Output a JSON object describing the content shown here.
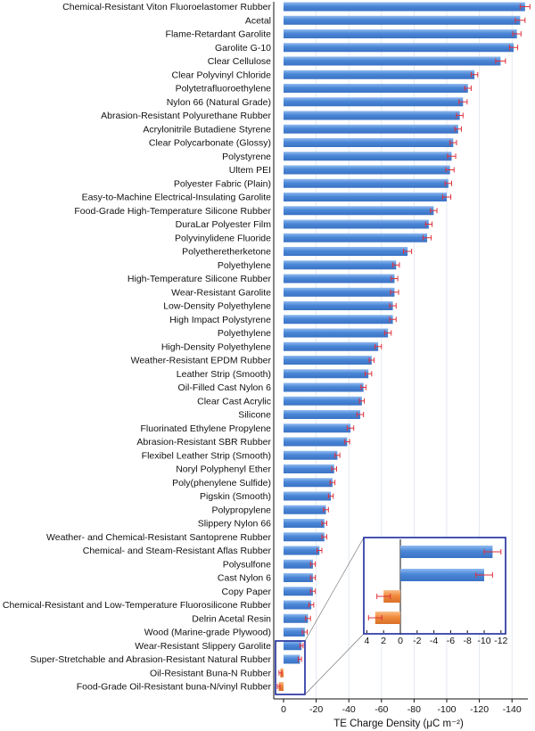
{
  "chart_data": {
    "type": "bar",
    "orientation": "horizontal",
    "x_reversed": true,
    "xlabel": "TE Charge Density (μC m⁻²)",
    "xlim": [
      0,
      -150
    ],
    "x_ticks": [
      0,
      -20,
      -40,
      -60,
      -80,
      -100,
      -120,
      -140
    ],
    "x_tick_labels": [
      "0",
      "-20",
      "-40",
      "-60",
      "-80",
      "-100",
      "-120",
      "-140"
    ],
    "grid": true,
    "error_bars": true,
    "colors": {
      "negative_bar": "#4a86d6",
      "positive_bar": "#f08a3c",
      "error_bar": "#e0303c",
      "inset_frame": "#1c2a9c"
    },
    "categories": [
      "Chemical-Resistant Viton Fluoroelastomer Rubber",
      "Acetal",
      "Flame-Retardant Garolite",
      "Garolite G-10",
      "Clear Cellulose",
      "Clear Polyvinyl Chloride",
      "Polytetrafluoroethylene",
      "Nylon 66 (Natural Grade)",
      "Abrasion-Resistant Polyurethane Rubber",
      "Acrylonitrile Butadiene Styrene",
      "Clear Polycarbonate (Glossy)",
      "Polystyrene",
      "Ultem PEI",
      "Polyester Fabric (Plain)",
      "Easy-to-Machine Electrical-Insulating Garolite",
      "Food-Grade High-Temperature Silicone Rubber",
      "DuraLar Polyester Film",
      "Polyvinylidene Fluoride",
      "Polyetheretherketone",
      "Polyethylene",
      "High-Temperature Silicone Rubber",
      "Wear-Resistant Garolite",
      "Low-Density Polyethylene",
      "High Impact Polystyrene",
      "Polyethylene",
      "High-Density Polyethylene",
      "Weather-Resistant EPDM Rubber",
      "Leather Strip (Smooth)",
      "Oil-Filled Cast Nylon 6",
      "Clear Cast Acrylic",
      "Silicone",
      "Fluorinated Ethylene Propylene",
      "Abrasion-Resistant SBR Rubber",
      "Flexibel Leather Strip (Smooth)",
      "Noryl Polyphenyl Ether",
      "Poly(phenylene Sulfide)",
      "Pigskin (Smooth)",
      "Polypropylene",
      "Slippery Nylon 66",
      "Weather- and Chemical-Resistant Santoprene Rubber",
      "Chemical- and Steam-Resistant Aflas Rubber",
      "Polysulfone",
      "Cast Nylon 6",
      "Copy Paper",
      "Chemical-Resistant and Low-Temperature Fluorosilicone Rubber",
      "Delrin Acetal Resin",
      "Wood (Marine-grade Plywood)",
      "Wear-Resistant Slippery Garolite",
      "Super-Stretchable and Abrasion-Resistant Natural Rubber",
      "Oil-Resistant Buna-N Rubber",
      "Food-Grade Oil-Resistant buna-N/vinyl Rubber"
    ],
    "values": [
      -148,
      -145,
      -143,
      -141,
      -133,
      -117,
      -113,
      -110,
      -108,
      -107,
      -104,
      -103,
      -102,
      -101,
      -100,
      -92,
      -89,
      -88,
      -76,
      -69,
      -68,
      -68,
      -67,
      -67,
      -64,
      -58,
      -54,
      -52,
      -49,
      -48,
      -47,
      -41,
      -39,
      -33,
      -31,
      -30,
      -29,
      -26,
      -25,
      -25,
      -22,
      -18,
      -18,
      -18,
      -17,
      -15,
      -13,
      -11,
      -10,
      2,
      3
    ],
    "errors": [
      3,
      3,
      2.5,
      2.5,
      3,
      2,
      2,
      2.5,
      2,
      2,
      2,
      2.5,
      2.5,
      2,
      2.5,
      2,
      2,
      2.5,
      2.5,
      2,
      2,
      2.5,
      2,
      2,
      2,
      2,
      1.5,
      2,
      1.5,
      1.5,
      2,
      2,
      1.5,
      1.5,
      1.5,
      1.5,
      1.5,
      1.5,
      1.5,
      1.5,
      1.5,
      1.5,
      1.5,
      1.5,
      1.5,
      1.5,
      1.5,
      1,
      1,
      0.8,
      0.8
    ],
    "inset": {
      "xlim": [
        4,
        -13
      ],
      "x_ticks": [
        4,
        2,
        0,
        -2,
        -4,
        -6,
        -8,
        -10,
        -12
      ],
      "x_tick_labels": [
        "4",
        "2",
        "0",
        "-2",
        "-4",
        "-6",
        "-8",
        "-10",
        "-12"
      ],
      "values": [
        -11,
        -10,
        2,
        3
      ],
      "errors": [
        1,
        1,
        0.8,
        0.8
      ]
    }
  }
}
